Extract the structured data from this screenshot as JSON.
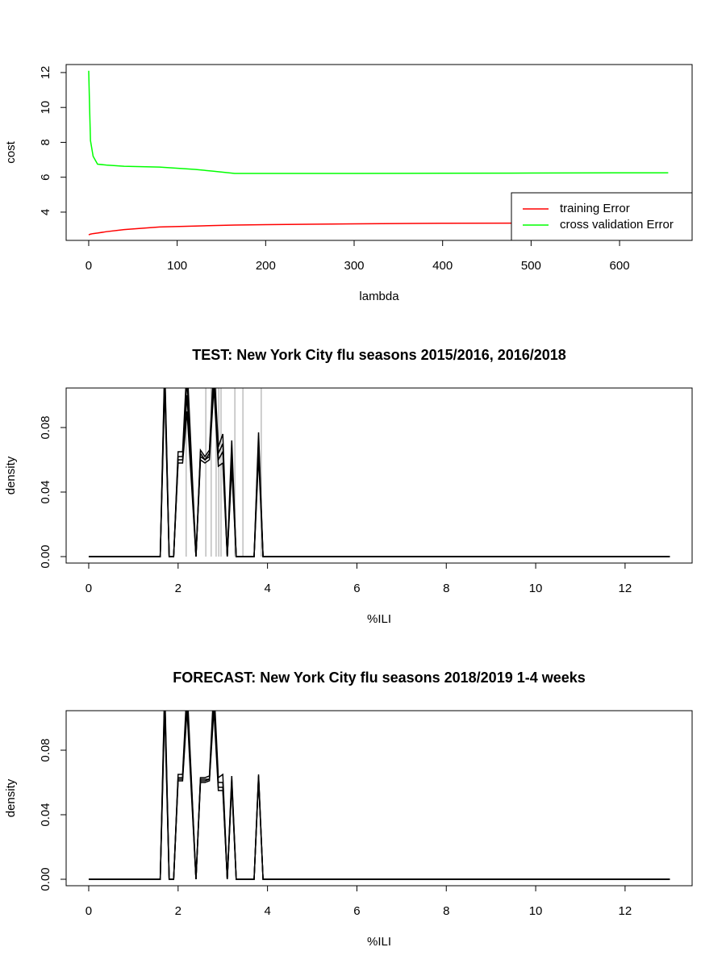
{
  "chart_data": [
    {
      "type": "line",
      "x_label": "lambda",
      "y_label": "cost",
      "x": [
        0,
        1,
        2,
        5,
        10,
        20,
        40,
        80,
        120,
        140,
        165,
        200,
        300,
        400,
        500,
        600,
        655
      ],
      "series": [
        {
          "name": "training Error",
          "color": "#ff0000",
          "values": [
            2.7,
            2.72,
            2.74,
            2.77,
            2.8,
            2.88,
            3.0,
            3.15,
            3.2,
            3.23,
            3.26,
            3.28,
            3.33,
            3.36,
            3.37,
            3.38,
            3.38
          ]
        },
        {
          "name": "cross validation Error",
          "color": "#00ff00",
          "values": [
            12.1,
            10,
            8.1,
            7.2,
            6.75,
            6.7,
            6.63,
            6.58,
            6.45,
            6.35,
            6.22,
            6.22,
            6.22,
            6.23,
            6.24,
            6.25,
            6.25
          ]
        }
      ],
      "xlim": [
        -25.5,
        682
      ],
      "xticks": [
        0,
        100,
        200,
        300,
        400,
        500,
        600
      ],
      "ylim": [
        2.38,
        12.46
      ],
      "yticks": [
        4,
        6,
        8,
        10,
        12
      ],
      "legend": "bottomright"
    },
    {
      "type": "line",
      "title": "TEST: New York City  flu seasons 2015/2016, 2016/2018",
      "x_label": "%ILI",
      "y_label": "density",
      "x": [
        0,
        1.6,
        1.7,
        1.8,
        1.9,
        2.0,
        2.1,
        2.2,
        2.3,
        2.4,
        2.5,
        2.6,
        2.7,
        2.8,
        2.9,
        3.0,
        3.1,
        3.2,
        3.3,
        3.7,
        3.8,
        3.9,
        13
      ],
      "series": [
        {
          "color": "#000000",
          "values": [
            0,
            0,
            0.12,
            0,
            0,
            0.065,
            0.065,
            0.12,
            0.06,
            0,
            0.066,
            0.062,
            0.066,
            0.12,
            0.068,
            0.076,
            0,
            0.072,
            0,
            0,
            0.077,
            0,
            0
          ]
        },
        {
          "color": "#000000",
          "values": [
            0,
            0,
            0.115,
            0,
            0,
            0.062,
            0.062,
            0.11,
            0.055,
            0,
            0.064,
            0.06,
            0.064,
            0.115,
            0.064,
            0.07,
            0,
            0.065,
            0,
            0,
            0.072,
            0,
            0
          ]
        },
        {
          "color": "#000000",
          "values": [
            0,
            0,
            0.11,
            0,
            0,
            0.06,
            0.06,
            0.1,
            0.05,
            0,
            0.062,
            0.06,
            0.062,
            0.11,
            0.06,
            0.065,
            0,
            0.06,
            0,
            0,
            0.068,
            0,
            0
          ]
        },
        {
          "color": "#000000",
          "values": [
            0,
            0,
            0.105,
            0,
            0,
            0.058,
            0.058,
            0.09,
            0.045,
            0,
            0.06,
            0.058,
            0.06,
            0.105,
            0.056,
            0.058,
            0,
            0.055,
            0,
            0,
            0.062,
            0,
            0
          ]
        }
      ],
      "reference_lines": {
        "color": "#bebebe",
        "x": [
          2.18,
          2.62,
          2.74,
          2.85,
          2.91,
          2.96,
          3.27,
          3.45,
          3.86
        ]
      },
      "xlim": [
        -0.505,
        13.5
      ],
      "xticks": [
        0,
        2,
        4,
        6,
        8,
        10,
        12
      ],
      "ylim": [
        -0.004,
        0.1045
      ],
      "yticks": [
        {
          "value": 0,
          "label": "0.00"
        },
        {
          "value": 0.04,
          "label": "0.04"
        },
        {
          "value": 0.08,
          "label": "0.08"
        }
      ]
    },
    {
      "type": "line",
      "title": "FORECAST: New York City flu seasons 2018/2019 1-4 weeks",
      "x_label": "%ILI",
      "y_label": "density",
      "x": [
        0,
        1.6,
        1.7,
        1.8,
        1.9,
        2.0,
        2.1,
        2.2,
        2.3,
        2.4,
        2.5,
        2.6,
        2.7,
        2.8,
        2.9,
        3.0,
        3.1,
        3.2,
        3.3,
        3.7,
        3.8,
        3.9,
        13
      ],
      "series": [
        {
          "color": "#000000",
          "values": [
            0,
            0,
            0.12,
            0,
            0,
            0.065,
            0.065,
            0.12,
            0.06,
            0,
            0.063,
            0.063,
            0.064,
            0.12,
            0.063,
            0.065,
            0,
            0.064,
            0,
            0,
            0.065,
            0,
            0
          ]
        },
        {
          "color": "#000000",
          "values": [
            0,
            0,
            0.115,
            0,
            0,
            0.063,
            0.063,
            0.115,
            0.058,
            0,
            0.062,
            0.062,
            0.062,
            0.115,
            0.06,
            0.06,
            0,
            0.062,
            0,
            0,
            0.064,
            0,
            0
          ]
        },
        {
          "color": "#000000",
          "values": [
            0,
            0,
            0.11,
            0,
            0,
            0.062,
            0.062,
            0.11,
            0.055,
            0,
            0.061,
            0.061,
            0.062,
            0.11,
            0.057,
            0.057,
            0,
            0.06,
            0,
            0,
            0.063,
            0,
            0
          ]
        },
        {
          "color": "#000000",
          "values": [
            0,
            0,
            0.105,
            0,
            0,
            0.061,
            0.061,
            0.105,
            0.052,
            0,
            0.06,
            0.06,
            0.061,
            0.105,
            0.055,
            0.055,
            0,
            0.058,
            0,
            0,
            0.062,
            0,
            0
          ]
        }
      ],
      "xlim": [
        -0.505,
        13.5
      ],
      "xticks": [
        0,
        2,
        4,
        6,
        8,
        10,
        12
      ],
      "ylim": [
        -0.004,
        0.1045
      ],
      "yticks": [
        {
          "value": 0,
          "label": "0.00"
        },
        {
          "value": 0.04,
          "label": "0.04"
        },
        {
          "value": 0.08,
          "label": "0.08"
        }
      ]
    }
  ]
}
